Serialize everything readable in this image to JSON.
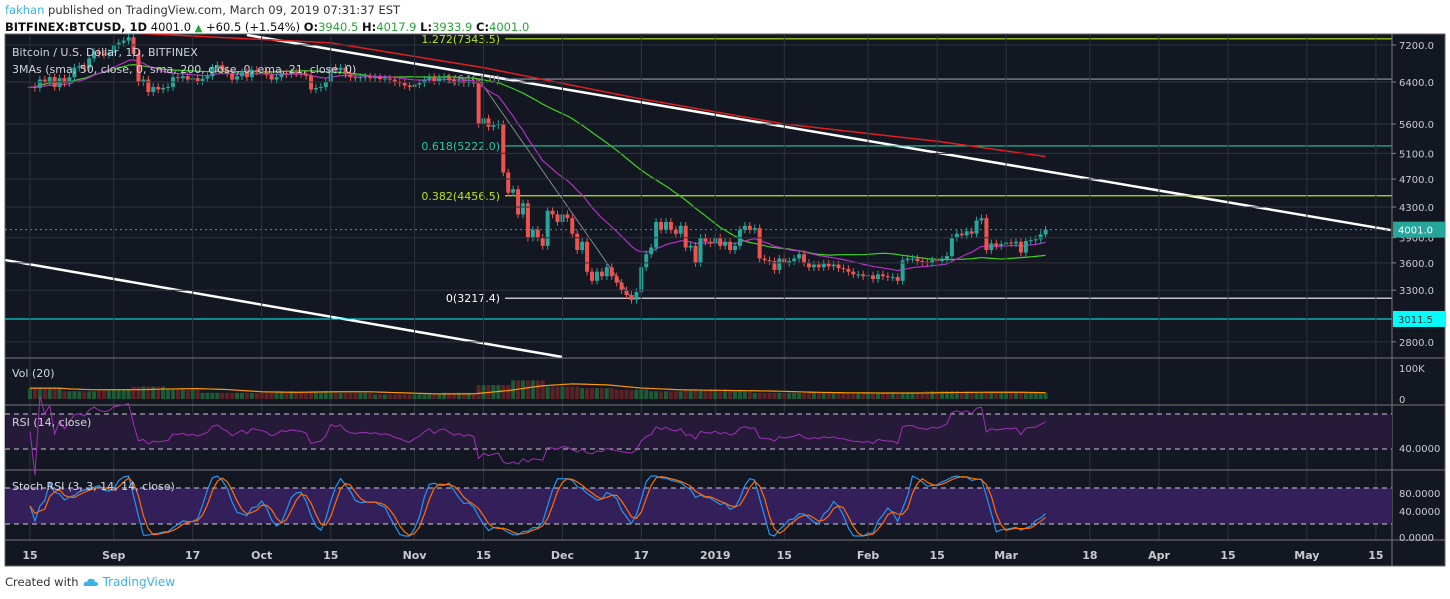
{
  "header": {
    "user": "fakhan",
    "published": "published on TradingView.com, March 09, 2019 07:31:37 EST",
    "symbol": "BITFINEX:BTCUSD, 1D",
    "last": "4001.0",
    "change": "+60.5 (+1.54%)",
    "o_label": "O:",
    "o": "3940.5",
    "h_label": "H:",
    "h": "4017.9",
    "l_label": "L:",
    "l": "3933.9",
    "c_label": "C:",
    "c": "4001.0"
  },
  "footer": {
    "created_with": "Created with",
    "brand": "TradingView"
  },
  "colors": {
    "background": "#131722",
    "grid": "#2f333e",
    "up": "#26a69a",
    "down": "#ef5350",
    "sma50": "#3fd21f",
    "sma200": "#e01f1f",
    "ema21": "#b52fc8",
    "fib_0618": "#26c6a0",
    "fib_0382": "#b5e61d",
    "rsi": "#a22fb8",
    "stoch_k": "#2196f3",
    "stoch_d": "#ff6d00",
    "last_price_badge": "#26a69a",
    "level_badge": "#00ffff"
  },
  "chart_data": {
    "type": "candlestick",
    "title": "Bitcoin / U.S. Dollar, 1D, BITFINEX",
    "indicator_label": "3MAs (sma, 50, close, 0, sma, 200, close, 0, ema, 21, close, 0)",
    "y_scale": "log",
    "grid": true,
    "first_date": "2018-08-15",
    "closes": [
      6300,
      6280,
      6450,
      6400,
      6500,
      6300,
      6480,
      6380,
      6500,
      6700,
      6730,
      6700,
      6900,
      7050,
      7000,
      6980,
      7020,
      7200,
      7250,
      7300,
      7380,
      7000,
      6400,
      6450,
      6200,
      6300,
      6250,
      6280,
      6300,
      6500,
      6480,
      6520,
      6450,
      6480,
      6420,
      6470,
      6520,
      6700,
      6750,
      6650,
      6580,
      6450,
      6520,
      6600,
      6500,
      6650,
      6620,
      6600,
      6550,
      6450,
      6500,
      6580,
      6560,
      6600,
      6580,
      6570,
      6530,
      6250,
      6280,
      6300,
      6400,
      6700,
      6650,
      6700,
      6560,
      6500,
      6480,
      6500,
      6510,
      6480,
      6500,
      6460,
      6470,
      6450,
      6400,
      6380,
      6330,
      6300,
      6350,
      6380,
      6450,
      6500,
      6420,
      6480,
      6500,
      6450,
      6400,
      6420,
      6380,
      6400,
      6370,
      5600,
      5700,
      5550,
      5580,
      5600,
      4800,
      4500,
      4550,
      4200,
      4350,
      3900,
      4000,
      3900,
      3800,
      4250,
      4200,
      4100,
      4200,
      4150,
      3950,
      3750,
      3850,
      3500,
      3400,
      3500,
      3450,
      3550,
      3450,
      3380,
      3300,
      3250,
      3200,
      3280,
      3550,
      3700,
      3780,
      4100,
      4000,
      4100,
      4000,
      3950,
      4050,
      3780,
      3800,
      3600,
      3900,
      3850,
      3830,
      3900,
      3800,
      3850,
      3750,
      3800,
      4000,
      4050,
      4000,
      4020,
      3650,
      3630,
      3620,
      3520,
      3650,
      3600,
      3620,
      3650,
      3700,
      3600,
      3550,
      3580,
      3550,
      3590,
      3560,
      3580,
      3540,
      3530,
      3500,
      3470,
      3470,
      3450,
      3460,
      3420,
      3470,
      3450,
      3440,
      3440,
      3400,
      3630,
      3650,
      3650,
      3620,
      3610,
      3600,
      3630,
      3620,
      3640,
      3680,
      3900,
      3950,
      3930,
      3980,
      3950,
      4120,
      4150,
      3750,
      3830,
      3800,
      3820,
      3840,
      3830,
      3850,
      3720,
      3860,
      3870,
      3880,
      3940,
      4001
    ],
    "sma200": [
      [
        "2018-08-15",
        7600
      ],
      [
        "2018-10-15",
        7250
      ],
      [
        "2018-11-15",
        6700
      ],
      [
        "2018-12-15",
        6100
      ],
      [
        "2019-01-15",
        5600
      ],
      [
        "2019-02-15",
        5300
      ],
      [
        "2019-03-09",
        5050
      ]
    ],
    "trendlines": [
      {
        "from": [
          "2018-09-28",
          7433
        ],
        "to": [
          "2019-05-18",
          3996
        ]
      },
      {
        "from": [
          "2018-08-10",
          3632
        ],
        "to": [
          "2018-12-01",
          2668
        ]
      }
    ],
    "fib_diagonal": {
      "from": [
        "2018-11-14",
        6461.0
      ],
      "to": [
        "2018-12-15",
        3217.4
      ]
    },
    "fib_levels": [
      {
        "label": "1.272(7343.5)",
        "value": 7343.5,
        "color": "#b5e61d"
      },
      {
        "label": "1(6461.0)",
        "value": 6461.0,
        "color": "#9598a1"
      },
      {
        "label": "0.618(5222.0)",
        "value": 5222.0,
        "color": "#26c6a0"
      },
      {
        "label": "0.382(4456.5)",
        "value": 4456.5,
        "color": "#b5e61d"
      },
      {
        "label": "0(3217.4)",
        "value": 3217.4,
        "color": "#ffffff"
      }
    ],
    "level_line": {
      "value": 3011.5,
      "label": "3011.5"
    },
    "last_price": {
      "value": 4001.0,
      "label": "4001.0"
    },
    "y_ticks": [
      "7200.0",
      "6400.0",
      "5600.0",
      "5100.0",
      "4700.0",
      "4300.0",
      "3900.0",
      "3600.0",
      "3300.0",
      "2800.0"
    ],
    "x_ticks": [
      {
        "label": "15",
        "date": "2018-08-15"
      },
      {
        "label": "Sep",
        "date": "2018-09-01"
      },
      {
        "label": "17",
        "date": "2018-09-17"
      },
      {
        "label": "Oct",
        "date": "2018-10-01"
      },
      {
        "label": "15",
        "date": "2018-10-15"
      },
      {
        "label": "Nov",
        "date": "2018-11-01"
      },
      {
        "label": "15",
        "date": "2018-11-15"
      },
      {
        "label": "Dec",
        "date": "2018-12-01"
      },
      {
        "label": "17",
        "date": "2018-12-17"
      },
      {
        "label": "2019",
        "date": "2019-01-01"
      },
      {
        "label": "15",
        "date": "2019-01-15"
      },
      {
        "label": "Feb",
        "date": "2019-02-01"
      },
      {
        "label": "15",
        "date": "2019-02-15"
      },
      {
        "label": "Mar",
        "date": "2019-03-01"
      },
      {
        "label": "18",
        "date": "2019-03-18"
      },
      {
        "label": "Apr",
        "date": "2019-04-01"
      },
      {
        "label": "15",
        "date": "2019-04-15"
      },
      {
        "label": "May",
        "date": "2019-05-01"
      },
      {
        "label": "15",
        "date": "2019-05-15"
      }
    ],
    "volume": {
      "label": "Vol (20)",
      "unit": "K",
      "weekly_values": [
        35,
        25,
        30,
        40,
        30,
        20,
        20,
        25,
        25,
        20,
        15,
        15,
        20,
        45,
        60,
        40,
        35,
        30,
        25,
        30,
        25,
        20,
        20,
        20,
        18,
        20,
        25,
        20,
        20,
        20
      ],
      "ticks": [
        "100K",
        "0"
      ],
      "max": 100
    },
    "rsi": {
      "label": "RSI (14, close)",
      "bands": [
        30,
        70
      ],
      "tick": "40.0000"
    },
    "stoch_rsi": {
      "label": "Stoch RSI (3, 3, 14, 14, close)",
      "bands": [
        20,
        80
      ],
      "ticks": [
        "80.0000",
        "40.0000",
        "0.0000"
      ]
    }
  }
}
